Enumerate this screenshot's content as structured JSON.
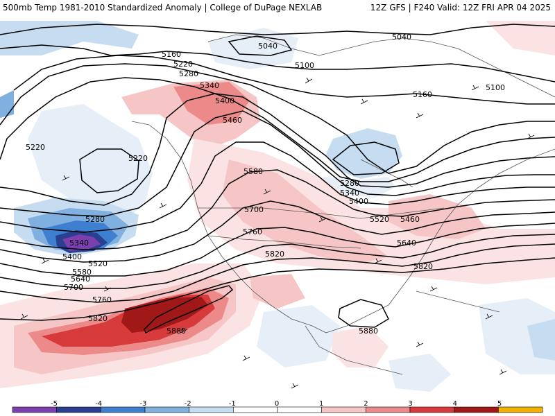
{
  "header": {
    "left": "500mb Temp 1981-2010 Standardized Anomaly | College of DuPage NEXLAB",
    "right": "12Z GFS | F240 Valid: 12Z FRI APR 04 2025"
  },
  "contour_labels": [
    "5040",
    "5040",
    "5100",
    "5100",
    "5160",
    "5160",
    "5220",
    "5220",
    "5220",
    "5280",
    "5280",
    "5280",
    "5340",
    "5340",
    "5340",
    "5400",
    "5400",
    "5400",
    "5460",
    "5460",
    "5520",
    "5520",
    "5580",
    "5580",
    "5640",
    "5640",
    "5700",
    "5700",
    "5760",
    "5760",
    "5820",
    "5820",
    "5820",
    "5880",
    "5880"
  ],
  "colorbar": {
    "ticks": [
      "-5",
      "-4",
      "-3",
      "-2",
      "-1",
      "0",
      "1",
      "2",
      "3",
      "4",
      "5"
    ],
    "colors": [
      "#7b3fb0",
      "#2a3f8f",
      "#3f7fd0",
      "#7fb0e0",
      "#c6dcf0",
      "#ffffff",
      "#ffffff",
      "#f6c6c6",
      "#ec8a8a",
      "#d63a3a",
      "#a01818",
      "#f2b000"
    ]
  }
}
